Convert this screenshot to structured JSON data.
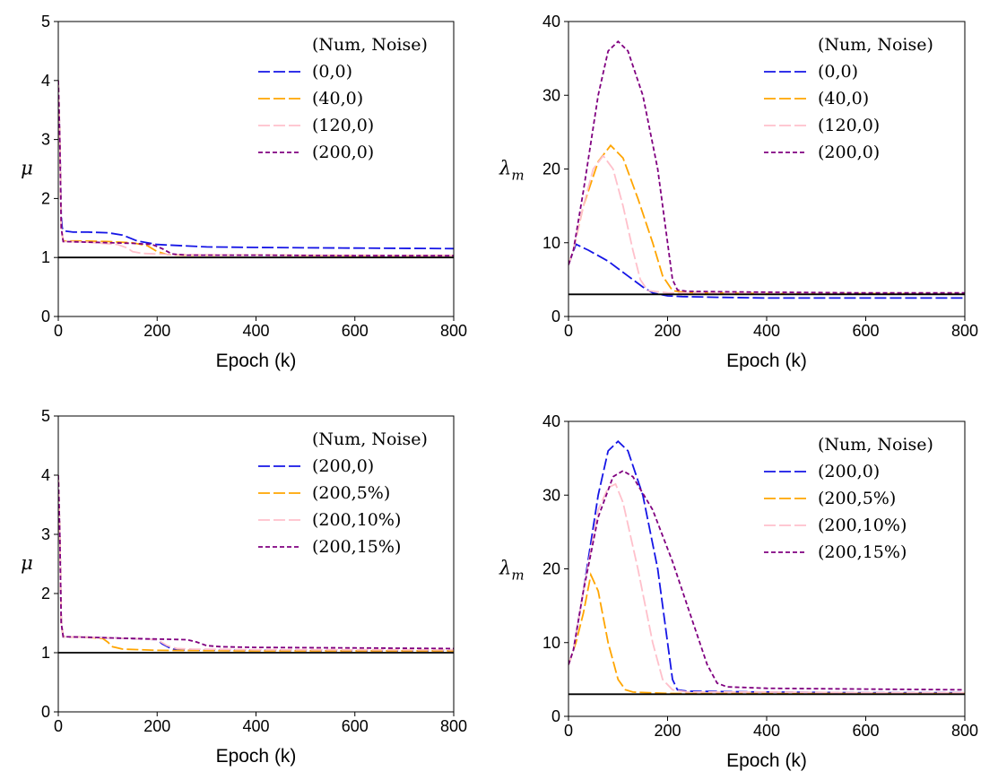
{
  "chart_data": [
    {
      "type": "line",
      "xlabel": "Epoch (k)",
      "ylabel": "μ",
      "xlim": [
        0,
        800
      ],
      "ylim": [
        0,
        5
      ],
      "xticks": [
        "0",
        "200",
        "400",
        "600",
        "800"
      ],
      "yticks": [
        "0",
        "1",
        "2",
        "3",
        "4",
        "5"
      ],
      "legend_title": "(Num, Noise)",
      "legend_position": "top-right",
      "reference_line": {
        "y": 1,
        "color": "#000000"
      },
      "series": [
        {
          "name": "(0,0)",
          "color": "#1515e6",
          "dash": "longdash",
          "x": [
            0,
            3,
            6,
            8,
            12,
            30,
            60,
            100,
            130,
            160,
            200,
            300,
            400,
            600,
            800
          ],
          "y": [
            4.0,
            3.0,
            1.7,
            1.5,
            1.45,
            1.43,
            1.43,
            1.42,
            1.38,
            1.28,
            1.22,
            1.18,
            1.17,
            1.16,
            1.15
          ]
        },
        {
          "name": "(40,0)",
          "color": "#ffa500",
          "dash": "longdash",
          "x": [
            0,
            3,
            6,
            10,
            40,
            100,
            150,
            180,
            200,
            220,
            260,
            400,
            600,
            800
          ],
          "y": [
            4.0,
            3.0,
            1.5,
            1.28,
            1.28,
            1.27,
            1.25,
            1.2,
            1.1,
            1.05,
            1.04,
            1.04,
            1.03,
            1.03
          ]
        },
        {
          "name": "(120,0)",
          "color": "#ffc0cb",
          "dash": "longdash",
          "x": [
            0,
            3,
            6,
            10,
            60,
            120,
            140,
            150,
            170,
            200,
            230,
            400,
            600,
            800
          ],
          "y": [
            4.0,
            3.0,
            1.5,
            1.27,
            1.26,
            1.22,
            1.16,
            1.1,
            1.07,
            1.06,
            1.05,
            1.04,
            1.04,
            1.03
          ]
        },
        {
          "name": "(200,0)",
          "color": "#800080",
          "dash": "shortdash",
          "x": [
            0,
            3,
            6,
            10,
            60,
            150,
            190,
            210,
            230,
            260,
            400,
            600,
            800
          ],
          "y": [
            4.0,
            3.0,
            1.5,
            1.27,
            1.26,
            1.24,
            1.22,
            1.15,
            1.06,
            1.04,
            1.04,
            1.03,
            1.03
          ]
        }
      ]
    },
    {
      "type": "line",
      "xlabel": "Epoch (k)",
      "ylabel": "λm",
      "ylabel_main": "λ",
      "ylabel_sub": "m",
      "xlim": [
        0,
        800
      ],
      "ylim": [
        0,
        40
      ],
      "xticks": [
        "0",
        "200",
        "400",
        "600",
        "800"
      ],
      "yticks": [
        "0",
        "10",
        "20",
        "30",
        "40"
      ],
      "legend_title": "(Num, Noise)",
      "legend_position": "top-right",
      "reference_line": {
        "y": 3,
        "color": "#000000"
      },
      "series": [
        {
          "name": "(0,0)",
          "color": "#1515e6",
          "dash": "longdash",
          "x": [
            0,
            15,
            40,
            80,
            120,
            150,
            170,
            200,
            230,
            300,
            400,
            600,
            800
          ],
          "y": [
            7,
            9.8,
            9,
            7.5,
            5.5,
            4,
            3.2,
            2.8,
            2.7,
            2.6,
            2.5,
            2.5,
            2.5
          ]
        },
        {
          "name": "(40,0)",
          "color": "#ffa500",
          "dash": "longdash",
          "x": [
            0,
            10,
            30,
            60,
            85,
            110,
            140,
            170,
            190,
            210,
            230,
            260,
            400,
            600,
            800
          ],
          "y": [
            7,
            9,
            15,
            21,
            23.2,
            21.5,
            16,
            10,
            5.5,
            3.5,
            3.3,
            3.2,
            3.1,
            3.1,
            3.1
          ]
        },
        {
          "name": "(120,0)",
          "color": "#ffc0cb",
          "dash": "longdash",
          "x": [
            0,
            10,
            30,
            50,
            70,
            90,
            110,
            130,
            145,
            160,
            200,
            400,
            600,
            800
          ],
          "y": [
            7,
            9,
            15,
            20,
            21.8,
            20,
            15,
            9,
            5,
            3.5,
            3.2,
            3.1,
            3.1,
            3.1
          ]
        },
        {
          "name": "(200,0)",
          "color": "#800080",
          "dash": "shortdash",
          "x": [
            0,
            10,
            30,
            60,
            80,
            100,
            120,
            150,
            180,
            200,
            210,
            220,
            240,
            400,
            600,
            800
          ],
          "y": [
            7,
            9,
            17,
            30,
            36,
            37.3,
            36,
            30,
            20,
            10,
            5,
            3.6,
            3.4,
            3.3,
            3.2,
            3.2
          ]
        }
      ]
    },
    {
      "type": "line",
      "xlabel": "Epoch (k)",
      "ylabel": "μ",
      "xlim": [
        0,
        800
      ],
      "ylim": [
        0,
        5
      ],
      "xticks": [
        "0",
        "200",
        "400",
        "600",
        "800"
      ],
      "yticks": [
        "0",
        "1",
        "2",
        "3",
        "4",
        "5"
      ],
      "legend_title": "(Num, Noise)",
      "legend_position": "top-right",
      "reference_line": {
        "y": 1,
        "color": "#000000"
      },
      "series": [
        {
          "name": "(200,0)",
          "color": "#1515e6",
          "dash": "longdash",
          "x": [
            0,
            3,
            6,
            10,
            60,
            150,
            200,
            210,
            230,
            260,
            400,
            600,
            800
          ],
          "y": [
            4.0,
            3.0,
            1.5,
            1.27,
            1.26,
            1.24,
            1.22,
            1.15,
            1.06,
            1.04,
            1.04,
            1.03,
            1.03
          ]
        },
        {
          "name": "(200,5%)",
          "color": "#ffa500",
          "dash": "longdash",
          "x": [
            0,
            3,
            6,
            10,
            60,
            90,
            100,
            110,
            130,
            200,
            400,
            600,
            800
          ],
          "y": [
            4.0,
            3.0,
            1.5,
            1.27,
            1.26,
            1.24,
            1.18,
            1.1,
            1.06,
            1.04,
            1.03,
            1.03,
            1.03
          ]
        },
        {
          "name": "(200,10%)",
          "color": "#ffc0cb",
          "dash": "longdash",
          "x": [
            0,
            3,
            6,
            10,
            60,
            150,
            200,
            220,
            240,
            270,
            400,
            600,
            800
          ],
          "y": [
            4.0,
            3.0,
            1.5,
            1.27,
            1.26,
            1.24,
            1.22,
            1.12,
            1.07,
            1.06,
            1.05,
            1.05,
            1.05
          ]
        },
        {
          "name": "(200,15%)",
          "color": "#800080",
          "dash": "shortdash",
          "x": [
            0,
            3,
            6,
            10,
            60,
            150,
            260,
            280,
            300,
            330,
            400,
            600,
            800
          ],
          "y": [
            4.0,
            3.0,
            1.5,
            1.27,
            1.26,
            1.24,
            1.22,
            1.18,
            1.12,
            1.1,
            1.09,
            1.08,
            1.07
          ]
        }
      ]
    },
    {
      "type": "line",
      "xlabel": "Epoch (k)",
      "ylabel": "λm",
      "ylabel_main": "λ",
      "ylabel_sub": "m",
      "xlim": [
        0,
        800
      ],
      "ylim": [
        0,
        40
      ],
      "xticks": [
        "0",
        "200",
        "400",
        "600",
        "800"
      ],
      "yticks": [
        "0",
        "10",
        "20",
        "30",
        "40"
      ],
      "legend_title": "(Num, Noise)",
      "legend_position": "top-right",
      "reference_line": {
        "y": 3,
        "color": "#000000"
      },
      "series": [
        {
          "name": "(200,0)",
          "color": "#1515e6",
          "dash": "longdash",
          "x": [
            0,
            10,
            30,
            60,
            80,
            100,
            120,
            150,
            180,
            200,
            210,
            220,
            240,
            400,
            600,
            800
          ],
          "y": [
            7,
            9,
            17,
            30,
            36,
            37.3,
            36,
            30,
            20,
            10,
            5,
            3.6,
            3.4,
            3.3,
            3.2,
            3.2
          ]
        },
        {
          "name": "(200,5%)",
          "color": "#ffa500",
          "dash": "longdash",
          "x": [
            0,
            15,
            30,
            45,
            60,
            80,
            100,
            115,
            130,
            200,
            400,
            600,
            800
          ],
          "y": [
            7,
            10,
            14,
            19.2,
            17,
            10,
            5,
            3.6,
            3.3,
            3.1,
            3.1,
            3.1,
            3.1
          ]
        },
        {
          "name": "(200,10%)",
          "color": "#ffc0cb",
          "dash": "longdash",
          "x": [
            0,
            10,
            30,
            60,
            80,
            95,
            110,
            140,
            170,
            190,
            210,
            240,
            400,
            600,
            800
          ],
          "y": [
            7,
            9,
            17,
            28,
            31,
            31.5,
            29,
            20,
            10,
            5,
            3.6,
            3.3,
            3.3,
            3.2,
            3.2
          ]
        },
        {
          "name": "(200,15%)",
          "color": "#800080",
          "dash": "shortdash",
          "x": [
            0,
            10,
            30,
            60,
            90,
            110,
            130,
            170,
            210,
            250,
            280,
            300,
            320,
            400,
            600,
            800
          ],
          "y": [
            7,
            9,
            17,
            27,
            32.5,
            33.3,
            32.5,
            28,
            21,
            13,
            7,
            4.5,
            4,
            3.8,
            3.7,
            3.6
          ]
        }
      ]
    }
  ]
}
